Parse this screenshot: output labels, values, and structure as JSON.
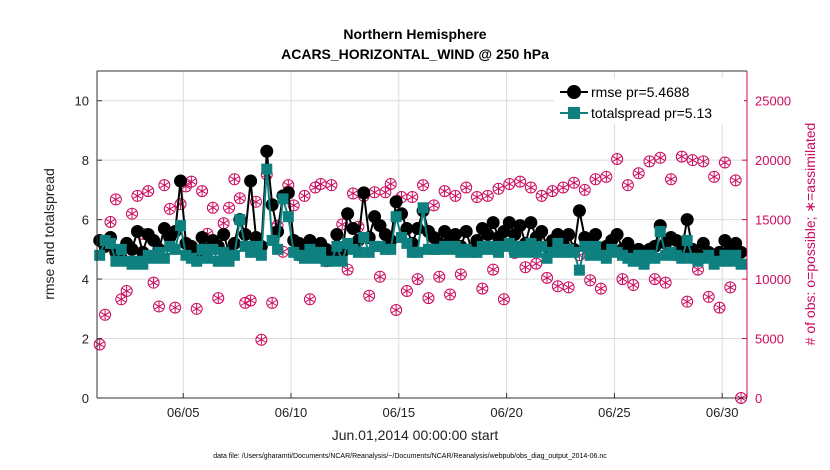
{
  "chart_data": {
    "type": "line",
    "title_line1": "Northern Hemisphere",
    "title_line2": "ACARS_HORIZONTAL_WIND @ 250 hPa",
    "xlabel": "Jun.01,2014 00:00:00 start",
    "ylabel": "rmse and totalspread",
    "y2label": "# of obs: o=possible; ∗=assimilated",
    "xlim": [
      1.0,
      31.15
    ],
    "ylim": [
      0,
      11
    ],
    "y2lim": [
      0,
      27500
    ],
    "yticks": [
      0,
      2,
      4,
      6,
      8,
      10
    ],
    "y2ticks": [
      0,
      5000,
      10000,
      15000,
      20000,
      25000
    ],
    "xticks": [
      {
        "value": 5,
        "label": "06/05"
      },
      {
        "value": 10,
        "label": "06/10"
      },
      {
        "value": 15,
        "label": "06/15"
      },
      {
        "value": 20,
        "label": "06/20"
      },
      {
        "value": 25,
        "label": "06/25"
      },
      {
        "value": 30,
        "label": "06/30"
      }
    ],
    "grid": true,
    "legend_position": "top-right",
    "x": [
      1.125,
      1.375,
      1.625,
      1.875,
      2.125,
      2.375,
      2.625,
      2.875,
      3.125,
      3.375,
      3.625,
      3.875,
      4.125,
      4.375,
      4.625,
      4.875,
      5.125,
      5.375,
      5.625,
      5.875,
      6.125,
      6.375,
      6.625,
      6.875,
      7.125,
      7.375,
      7.625,
      7.875,
      8.125,
      8.375,
      8.625,
      8.875,
      9.125,
      9.375,
      9.625,
      9.875,
      10.125,
      10.375,
      10.625,
      10.875,
      11.125,
      11.375,
      11.625,
      11.875,
      12.125,
      12.375,
      12.625,
      12.875,
      13.125,
      13.375,
      13.625,
      13.875,
      14.125,
      14.375,
      14.625,
      14.875,
      15.125,
      15.375,
      15.625,
      15.875,
      16.125,
      16.375,
      16.625,
      16.875,
      17.125,
      17.375,
      17.625,
      17.875,
      18.125,
      18.375,
      18.625,
      18.875,
      19.125,
      19.375,
      19.625,
      19.875,
      20.125,
      20.375,
      20.625,
      20.875,
      21.125,
      21.375,
      21.625,
      21.875,
      22.125,
      22.375,
      22.625,
      22.875,
      23.125,
      23.375,
      23.625,
      23.875,
      24.125,
      24.375,
      24.625,
      24.875,
      25.125,
      25.375,
      25.625,
      25.875,
      26.125,
      26.375,
      26.625,
      26.875,
      27.125,
      27.375,
      27.625,
      27.875,
      28.125,
      28.375,
      28.625,
      28.875,
      29.125,
      29.375,
      29.625,
      29.875,
      30.125,
      30.375,
      30.625,
      30.875
    ],
    "series": [
      {
        "name": "rmse pr=5.4688",
        "color": "#000000",
        "marker": "circle",
        "values": [
          5.3,
          5.1,
          5.4,
          4.9,
          4.7,
          5.2,
          5.0,
          5.6,
          4.9,
          5.5,
          5.3,
          5.0,
          5.7,
          5.4,
          5.6,
          7.3,
          5.2,
          5.1,
          4.9,
          5.4,
          5.0,
          5.3,
          5.1,
          5.5,
          4.9,
          5.2,
          6.0,
          5.5,
          7.3,
          5.4,
          5.1,
          8.3,
          6.5,
          5.6,
          6.8,
          6.9,
          5.3,
          5.2,
          5.0,
          5.3,
          4.8,
          5.2,
          5.0,
          4.9,
          5.5,
          4.9,
          6.2,
          5.7,
          5.3,
          6.9,
          5.4,
          6.1,
          5.8,
          5.5,
          5.3,
          6.6,
          6.2,
          5.7,
          5.2,
          5.7,
          6.3,
          5.6,
          5.4,
          5.2,
          5.6,
          5.3,
          5.5,
          5.1,
          5.6,
          5.0,
          5.3,
          5.7,
          5.5,
          5.9,
          5.4,
          5.6,
          5.9,
          5.5,
          5.8,
          5.2,
          5.9,
          5.4,
          5.6,
          5.1,
          5.3,
          5.5,
          5.2,
          5.5,
          5.0,
          6.3,
          5.4,
          5.2,
          5.5,
          5.0,
          5.1,
          5.3,
          5.5,
          5.0,
          5.2,
          4.9,
          5.0,
          4.8,
          5.0,
          5.1,
          5.8,
          5.2,
          5.4,
          5.3,
          5.0,
          6.0,
          5.0,
          4.8,
          5.2,
          4.9,
          4.8,
          4.9,
          5.3,
          5.1,
          5.2,
          4.9
        ]
      },
      {
        "name": "totalspread pr=5.13",
        "color": "#0f8080",
        "marker": "square",
        "values": [
          4.8,
          5.3,
          5.2,
          4.6,
          5.0,
          4.6,
          4.5,
          4.6,
          4.5,
          4.8,
          4.7,
          4.9,
          4.7,
          5.1,
          5.0,
          5.8,
          4.8,
          4.7,
          4.6,
          5.0,
          4.7,
          5.0,
          4.6,
          4.9,
          4.6,
          4.8,
          6.0,
          5.1,
          4.9,
          5.1,
          4.8,
          7.7,
          5.3,
          5.0,
          6.7,
          6.1,
          4.9,
          4.8,
          4.7,
          5.0,
          4.7,
          4.9,
          4.6,
          4.6,
          5.1,
          4.6,
          5.2,
          5.0,
          4.9,
          5.4,
          4.9,
          5.1,
          5.1,
          5.0,
          5.0,
          6.1,
          5.4,
          5.2,
          4.9,
          4.9,
          6.4,
          5.0,
          5.0,
          5.0,
          5.1,
          5.0,
          5.1,
          4.9,
          5.0,
          4.9,
          4.9,
          5.1,
          5.0,
          5.1,
          4.9,
          5.1,
          5.2,
          4.9,
          5.1,
          4.9,
          5.2,
          4.9,
          5.1,
          4.7,
          4.9,
          5.2,
          4.9,
          5.0,
          4.9,
          4.3,
          5.1,
          4.8,
          5.1,
          4.8,
          4.7,
          5.0,
          4.9,
          4.8,
          4.7,
          4.6,
          4.8,
          4.5,
          4.8,
          4.7,
          5.6,
          4.8,
          4.9,
          4.8,
          4.7,
          5.3,
          4.7,
          4.6,
          4.7,
          4.8,
          4.5,
          4.6,
          4.8,
          4.6,
          4.8,
          4.5
        ]
      }
    ],
    "obs_possible": [
      4500,
      7000,
      14800,
      16700,
      8300,
      9000,
      15500,
      17000,
      13800,
      17400,
      9700,
      7700,
      17900,
      15900,
      7600,
      16300,
      17800,
      18200,
      7500,
      17400,
      13800,
      16000,
      8400,
      14700,
      16000,
      18400,
      16800,
      8000,
      8200,
      16500,
      4900,
      18800,
      8000,
      14500,
      12300,
      17900,
      16200,
      12000,
      17000,
      8300,
      17700,
      18000,
      11500,
      17900,
      12200,
      14600,
      10800,
      17200,
      14400,
      17000,
      8600,
      17300,
      10200,
      17300,
      18000,
      7400,
      16900,
      9000,
      16900,
      10000,
      17900,
      8400,
      16200,
      10200,
      17400,
      8700,
      17000,
      10400,
      17700,
      12300,
      16900,
      9200,
      17000,
      10800,
      17600,
      8300,
      18000,
      12200,
      18200,
      11000,
      17700,
      11300,
      17000,
      10100,
      17400,
      9400,
      17700,
      9300,
      18100,
      12000,
      17500,
      9900,
      18400,
      9200,
      18600,
      12600,
      20100,
      10000,
      17900,
      9500,
      18900,
      11400,
      19900,
      10000,
      20200,
      9700,
      18400,
      12000,
      20300,
      8100,
      20000,
      10800,
      19900,
      8500,
      18600,
      7600,
      19800,
      9300,
      18300,
      0
    ]
  },
  "legend": {
    "rmse_label": "rmse pr=5.4688",
    "spread_label": "totalspread pr=5.13"
  },
  "footer": "data file: /Users/gharamti/Documents/NCAR/Reanalysis/~/Documents/NCAR/Reanalysis/webpub/obs_diag_output_2014-06.nc",
  "colors": {
    "rmse": "#000000",
    "totalspread": "#0f8080",
    "obs": "#cc0a5f",
    "grid": "#dcdcdc"
  }
}
